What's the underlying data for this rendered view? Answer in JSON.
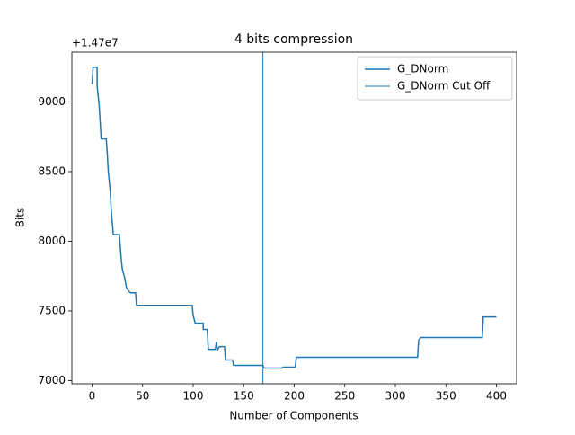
{
  "chart_data": {
    "type": "line",
    "title": "4 bits compression",
    "x_label": "Number of Components",
    "y_label": "Bits",
    "y_offset_label": "+1.47e7",
    "series": [
      {
        "name": "G_DNorm",
        "color": "#1f77b4",
        "x": [
          0,
          1,
          5,
          5,
          7,
          9,
          14,
          15,
          16,
          18,
          19,
          21,
          27,
          28,
          29,
          30,
          32,
          34,
          36,
          38,
          43,
          44,
          99,
          100,
          102,
          110,
          110,
          114,
          115,
          122,
          123,
          124,
          126,
          131,
          132,
          139,
          140,
          169,
          170,
          188,
          189,
          201,
          202,
          322,
          323,
          325,
          386,
          387,
          400
        ],
        "values": [
          9128,
          9250,
          9250,
          9115,
          8975,
          8735,
          8735,
          8633,
          8505,
          8357,
          8215,
          8048,
          8048,
          7952,
          7862,
          7797,
          7746,
          7669,
          7643,
          7630,
          7630,
          7540,
          7540,
          7469,
          7412,
          7412,
          7367,
          7367,
          7225,
          7225,
          7277,
          7219,
          7244,
          7244,
          7148,
          7148,
          7109,
          7109,
          7090,
          7090,
          7096,
          7096,
          7167,
          7167,
          7289,
          7309,
          7309,
          7457,
          7457
        ]
      }
    ],
    "cutoff": {
      "name": "G_DNorm Cut Off",
      "x": 169,
      "color": "#1f77b4"
    },
    "xlim": [
      -20,
      420
    ],
    "xticks": [
      0,
      50,
      100,
      150,
      200,
      250,
      300,
      350,
      400
    ],
    "ylim": [
      6977,
      9358
    ],
    "yticks": [
      7000,
      7500,
      8000,
      8500,
      9000
    ],
    "legend": "upper right",
    "grid": false
  }
}
